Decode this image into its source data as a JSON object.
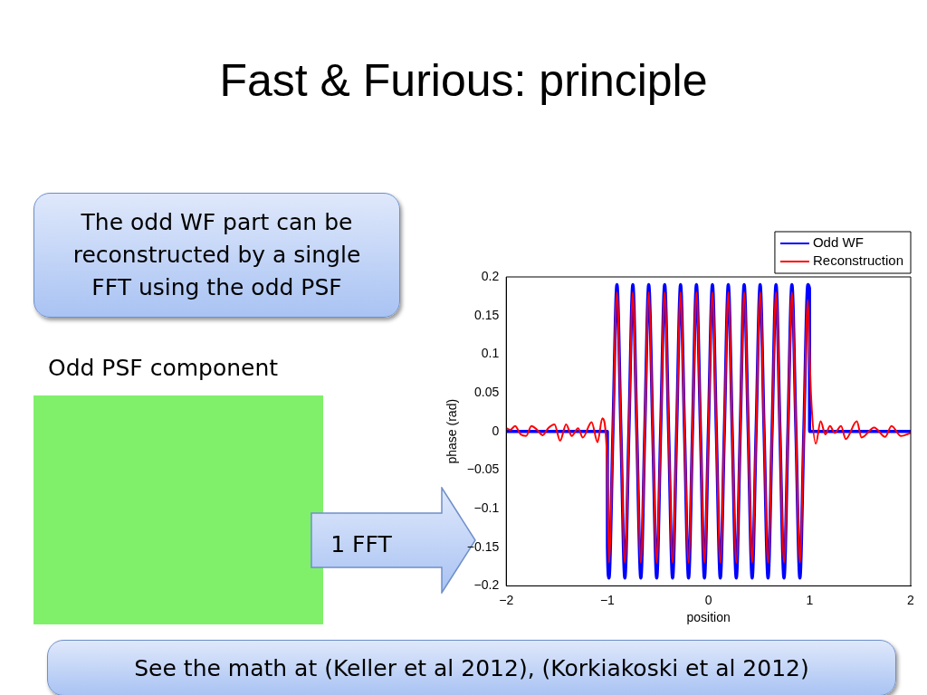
{
  "chart_data": {
    "type": "line",
    "title": "Fast & Furious: principle",
    "xlabel": "position",
    "ylabel": "phase (rad)",
    "annotations": [
      "The odd WF part can be reconstructed by a single FFT using the odd PSF",
      "Odd PSF component",
      "1 FFT",
      "See the math at (Keller et al 2012), (Korkiakoski et al 2012)"
    ],
    "xlim": [
      -2,
      2
    ],
    "xticks": [
      {
        "value": -2,
        "label": "−2"
      },
      {
        "value": -1,
        "label": "−1"
      },
      0,
      1,
      2
    ],
    "ylim": [
      -0.2,
      0.2
    ],
    "yticks": [
      {
        "value": -0.2,
        "label": "−0.2"
      },
      {
        "value": -0.15,
        "label": "−0.15"
      },
      {
        "value": -0.1,
        "label": "−0.1"
      },
      {
        "value": -0.05,
        "label": "−0.05"
      },
      0,
      0.05,
      0.1,
      0.15,
      0.2
    ],
    "grid": false,
    "legend": "top right",
    "marker": "none",
    "line_style": "solid",
    "series": [
      {
        "name": "Odd WF",
        "color": "#0000ff",
        "x": [
          -2,
          -1,
          -0.999,
          -0.984,
          -0.945,
          -0.905,
          -0.866,
          -0.827,
          -0.787,
          -0.748,
          -0.709,
          -0.669,
          -0.63,
          -0.591,
          -0.551,
          -0.512,
          -0.473,
          -0.433,
          -0.394,
          -0.355,
          -0.315,
          -0.276,
          -0.237,
          -0.197,
          -0.158,
          -0.119,
          -0.079,
          -0.04,
          -0.001,
          0.039,
          0.078,
          0.117,
          0.157,
          0.196,
          0.235,
          0.275,
          0.314,
          0.353,
          0.393,
          0.432,
          0.471,
          0.511,
          0.55,
          0.589,
          0.629,
          0.668,
          0.707,
          0.747,
          0.786,
          0.825,
          0.865,
          0.904,
          0.943,
          0.983,
          0.999,
          1,
          2
        ],
        "values": [
          0,
          0,
          -0.15,
          -0.19,
          0,
          0.19,
          0,
          -0.19,
          0,
          0.19,
          0,
          -0.19,
          0,
          0.19,
          0,
          -0.19,
          0,
          0.19,
          0,
          -0.19,
          0,
          0.19,
          0,
          -0.19,
          0,
          0.19,
          0,
          -0.19,
          0,
          0.19,
          0,
          -0.19,
          0,
          0.19,
          0,
          -0.19,
          0,
          0.19,
          0,
          -0.19,
          0,
          0.19,
          0,
          -0.19,
          0,
          0.19,
          0,
          -0.19,
          0,
          0.19,
          0,
          -0.19,
          0,
          0.19,
          0.185,
          0,
          0
        ]
      },
      {
        "name": "Reconstruction",
        "color": "#ff0000",
        "x": [
          -2,
          -1.96,
          -1.913,
          -1.857,
          -1.804,
          -1.751,
          -1.695,
          -1.639,
          -1.586,
          -1.523,
          -1.467,
          -1.408,
          -1.352,
          -1.29,
          -1.243,
          -1.156,
          -1.097,
          -1.05,
          -1.003,
          -0.984,
          -0.945,
          -0.905,
          -0.866,
          -0.827,
          -0.787,
          -0.748,
          -0.709,
          -0.669,
          -0.63,
          -0.591,
          -0.551,
          -0.512,
          -0.473,
          -0.433,
          -0.394,
          -0.355,
          -0.315,
          -0.276,
          -0.237,
          -0.197,
          -0.158,
          -0.119,
          -0.079,
          -0.04,
          -0.001,
          0.039,
          0.078,
          0.117,
          0.157,
          0.196,
          0.235,
          0.275,
          0.314,
          0.353,
          0.393,
          0.432,
          0.471,
          0.511,
          0.55,
          0.589,
          0.629,
          0.668,
          0.707,
          0.747,
          0.786,
          0.825,
          0.865,
          0.904,
          0.943,
          0.983,
          1,
          1.016,
          1.062,
          1.109,
          1.156,
          1.202,
          1.249,
          1.311,
          1.358,
          1.467,
          1.514,
          1.639,
          1.748,
          1.81,
          1.903,
          2
        ],
        "values": [
          0.004,
          0.002,
          0.007,
          -0.004,
          -0.006,
          0.007,
          0.002,
          -0.005,
          0.004,
          0.009,
          -0.012,
          0.009,
          -0.006,
          0.004,
          -0.008,
          0.012,
          -0.014,
          0.017,
          -0.035,
          -0.17,
          0,
          0.18,
          0,
          -0.17,
          0,
          0.18,
          0,
          -0.17,
          0,
          0.18,
          0,
          -0.17,
          0,
          0.18,
          0,
          -0.17,
          0,
          0.18,
          0,
          -0.17,
          0,
          0.18,
          0,
          -0.17,
          0,
          0.18,
          0,
          -0.17,
          0,
          0.18,
          0,
          -0.17,
          0,
          0.18,
          0,
          -0.17,
          0,
          0.18,
          0,
          -0.17,
          0,
          0.18,
          0,
          -0.17,
          0,
          0.18,
          0,
          -0.17,
          0,
          0.17,
          0.1,
          0.042,
          -0.016,
          0.013,
          -0.004,
          0.007,
          -0.002,
          0.007,
          -0.01,
          0.013,
          -0.008,
          0.005,
          -0.007,
          0.007,
          -0.006,
          -0.002
        ]
      }
    ]
  }
}
